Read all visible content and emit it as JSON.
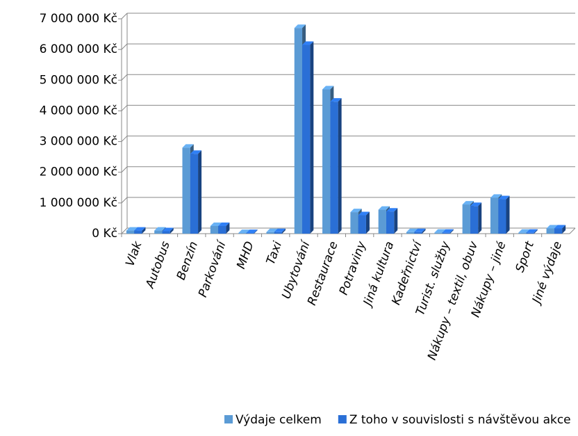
{
  "chart_data": {
    "type": "bar",
    "categories": [
      "Vlak",
      "Autobus",
      "Benzín",
      "Parkování",
      "MHD",
      "Taxi",
      "Ubytování",
      "Restaurace",
      "Potraviny",
      "Jiná kultura",
      "Kadeřnictví",
      "Turist. služby",
      "Nákupy – textil, obuv",
      "Nákupy – jiné",
      "Sport",
      "Jiné výdaje"
    ],
    "series": [
      {
        "name": "Výdaje celkem",
        "color": "#5b9bd5",
        "values": [
          100000,
          100000,
          2800000,
          250000,
          20000,
          50000,
          6700000,
          4700000,
          700000,
          780000,
          50000,
          30000,
          950000,
          1170000,
          30000,
          170000
        ]
      },
      {
        "name": "Z toho v souvislosti s návštěvou akce",
        "color": "#2a6fd6",
        "values": [
          100000,
          80000,
          2600000,
          250000,
          20000,
          50000,
          6150000,
          4300000,
          600000,
          720000,
          50000,
          30000,
          900000,
          1120000,
          30000,
          170000
        ]
      }
    ],
    "ylim": [
      0,
      7000000
    ],
    "yticks": [
      {
        "value": 0,
        "label": "0 Kč"
      },
      {
        "value": 1000000,
        "label": "1 000 000 Kč"
      },
      {
        "value": 2000000,
        "label": "2 000 000 Kč"
      },
      {
        "value": 3000000,
        "label": "3 000 000 Kč"
      },
      {
        "value": 4000000,
        "label": "4 000 000 Kč"
      },
      {
        "value": 5000000,
        "label": "5 000 000 Kč"
      },
      {
        "value": 6000000,
        "label": "6 000 000 Kč"
      },
      {
        "value": 7000000,
        "label": "7 000 000 Kč"
      }
    ],
    "grid": true,
    "legend": "bottom"
  }
}
